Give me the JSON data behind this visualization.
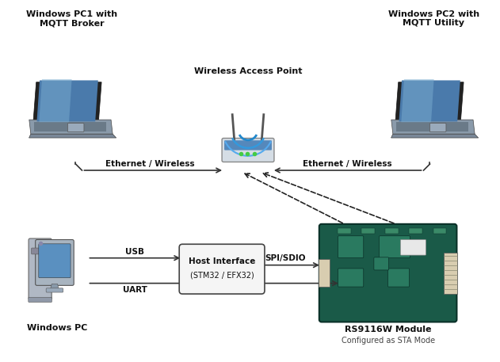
{
  "bg_color": "#ffffff",
  "figsize": [
    6.31,
    4.57
  ],
  "dpi": 100,
  "labels": {
    "pc1": "Windows PC1 with\nMQTT Broker",
    "pc2": "Windows PC2 with\nMQTT Utility",
    "wap": "Wireless Access Point",
    "eth_left": "Ethernet / Wireless",
    "eth_right": "Ethernet / Wireless",
    "host_line1": "Host Interface",
    "host_line2": "(STM32 / EFX32)",
    "usb": "USB",
    "uart": "UART",
    "spi": "SPI/SDIO",
    "module": "RS9116W Module",
    "module_sub": "Configured as STA Mode",
    "winpc": "Windows PC"
  },
  "colors": {
    "laptop_body": "#a8b4be",
    "laptop_screen_bg": "#4a7aab",
    "laptop_screen_border": "#222222",
    "laptop_base": "#8a9aaa",
    "laptop_keyboard": "#6a7a88",
    "router_body": "#c8d4dc",
    "router_blue": "#4488bb",
    "router_stripe": "#6699cc",
    "pcb_green": "#1a5a4a",
    "pcb_dark": "#0a3a2a",
    "line_color": "#333333",
    "text_color": "#111111",
    "box_fill": "#f5f5f5",
    "box_edge": "#444444",
    "desktop_body": "#b0b8c4",
    "desktop_screen": "#5a90c0"
  }
}
